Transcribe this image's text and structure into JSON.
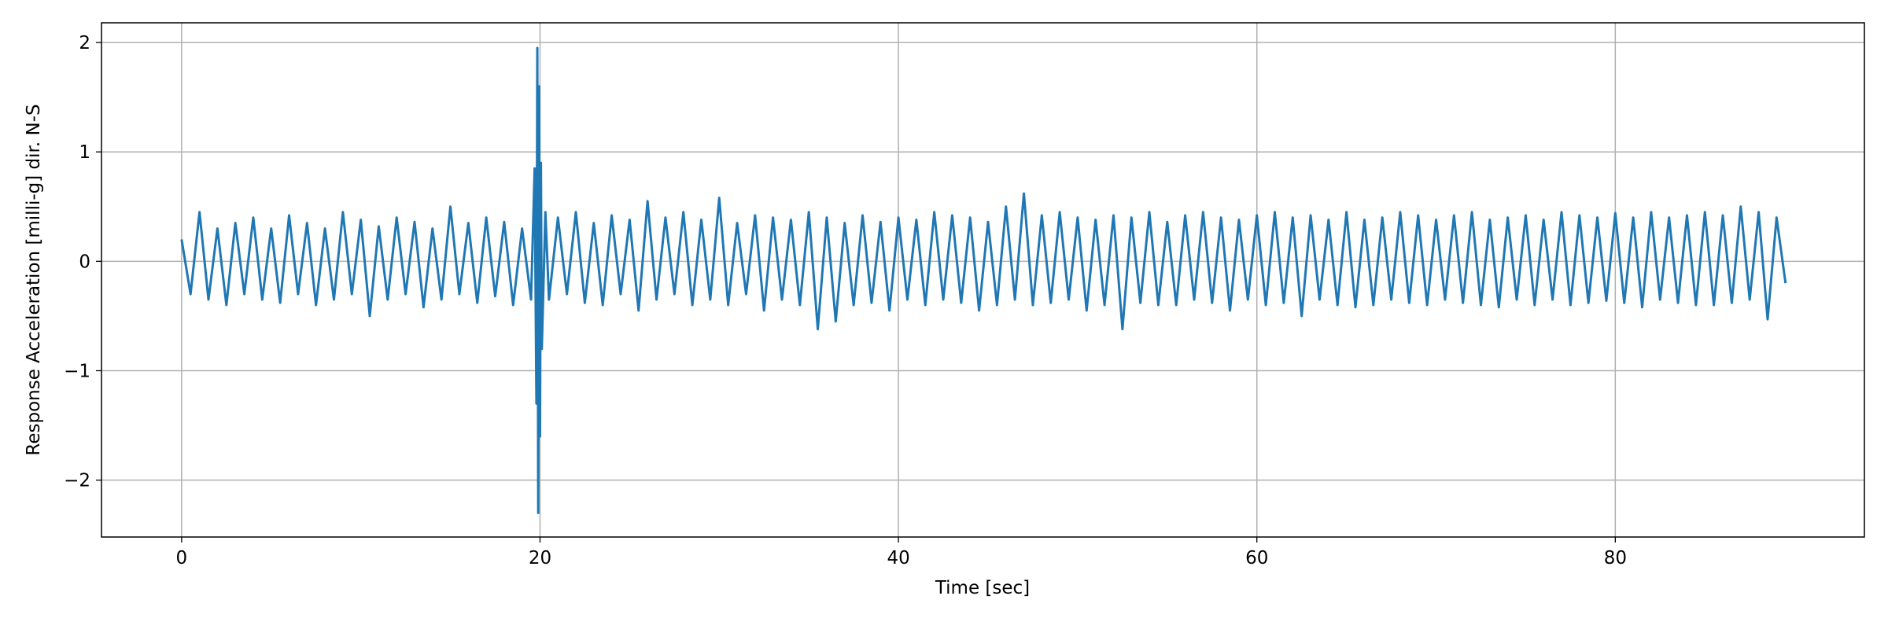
{
  "chart_data": {
    "type": "line",
    "xlabel": "Time [sec]",
    "ylabel": "Response Acceleration [milli-g] dir. N-S",
    "color": "#1f77b4",
    "grid": true,
    "xlim": [
      -4.47,
      93.9
    ],
    "ylim": [
      -2.52,
      2.18
    ],
    "xticks": [
      0,
      20,
      40,
      60,
      80
    ],
    "yticks": [
      {
        "value": -2,
        "label": "−2"
      },
      {
        "value": -1,
        "label": "−1"
      },
      0,
      1,
      2
    ],
    "x": [
      0,
      0.5,
      1,
      1.5,
      2,
      2.5,
      3,
      3.5,
      4,
      4.5,
      5,
      5.5,
      6,
      6.5,
      7,
      7.5,
      8,
      8.5,
      9,
      9.5,
      10,
      10.5,
      11,
      11.5,
      12,
      12.5,
      13,
      13.5,
      14,
      14.5,
      15,
      15.5,
      16,
      16.5,
      17,
      17.5,
      18,
      18.5,
      19,
      19.5,
      19.7,
      19.8,
      19.85,
      19.9,
      19.95,
      20.0,
      20.05,
      20.1,
      20.3,
      20.5,
      21,
      21.5,
      22,
      22.5,
      23,
      23.5,
      24,
      24.5,
      25,
      25.5,
      26,
      26.5,
      27,
      27.5,
      28,
      28.5,
      29,
      29.5,
      30,
      30.5,
      31,
      31.5,
      32,
      32.5,
      33,
      33.5,
      34,
      34.5,
      35,
      35.5,
      36,
      36.5,
      37,
      37.5,
      38,
      38.5,
      39,
      39.5,
      40,
      40.5,
      41,
      41.5,
      42,
      42.5,
      43,
      43.5,
      44,
      44.5,
      45,
      45.5,
      46,
      46.5,
      47,
      47.5,
      48,
      48.5,
      49,
      49.5,
      50,
      50.5,
      51,
      51.5,
      52,
      52.5,
      53,
      53.5,
      54,
      54.5,
      55,
      55.5,
      56,
      56.5,
      57,
      57.5,
      58,
      58.5,
      59,
      59.5,
      60,
      60.5,
      61,
      61.5,
      62,
      62.5,
      63,
      63.5,
      64,
      64.5,
      65,
      65.5,
      66,
      66.5,
      67,
      67.5,
      68,
      68.5,
      69,
      69.5,
      70,
      70.5,
      71,
      71.5,
      72,
      72.5,
      73,
      73.5,
      74,
      74.5,
      75,
      75.5,
      76,
      76.5,
      77,
      77.5,
      78,
      78.5,
      79,
      79.5,
      80,
      80.5,
      81,
      81.5,
      82,
      82.5,
      83,
      83.5,
      84,
      84.5,
      85,
      85.5,
      86,
      86.5,
      87,
      87.5,
      88,
      88.5,
      89,
      89.5
    ],
    "values": [
      0.2,
      -0.3,
      0.45,
      -0.35,
      0.3,
      -0.4,
      0.35,
      -0.3,
      0.4,
      -0.35,
      0.3,
      -0.38,
      0.42,
      -0.3,
      0.35,
      -0.4,
      0.3,
      -0.35,
      0.45,
      -0.3,
      0.38,
      -0.5,
      0.32,
      -0.35,
      0.4,
      -0.3,
      0.36,
      -0.42,
      0.3,
      -0.35,
      0.5,
      -0.3,
      0.35,
      -0.38,
      0.4,
      -0.32,
      0.36,
      -0.4,
      0.3,
      -0.35,
      0.85,
      -1.3,
      1.95,
      -2.3,
      1.6,
      -1.6,
      0.9,
      -0.8,
      0.45,
      -0.35,
      0.4,
      -0.3,
      0.45,
      -0.38,
      0.35,
      -0.4,
      0.42,
      -0.3,
      0.38,
      -0.45,
      0.55,
      -0.35,
      0.4,
      -0.3,
      0.45,
      -0.4,
      0.38,
      -0.35,
      0.58,
      -0.4,
      0.35,
      -0.3,
      0.42,
      -0.45,
      0.4,
      -0.35,
      0.38,
      -0.4,
      0.45,
      -0.62,
      0.4,
      -0.55,
      0.35,
      -0.4,
      0.42,
      -0.38,
      0.36,
      -0.45,
      0.4,
      -0.35,
      0.38,
      -0.4,
      0.45,
      -0.35,
      0.42,
      -0.38,
      0.4,
      -0.45,
      0.36,
      -0.4,
      0.5,
      -0.35,
      0.62,
      -0.4,
      0.42,
      -0.38,
      0.45,
      -0.35,
      0.4,
      -0.45,
      0.38,
      -0.4,
      0.42,
      -0.62,
      0.4,
      -0.38,
      0.45,
      -0.4,
      0.36,
      -0.4,
      0.42,
      -0.35,
      0.45,
      -0.38,
      0.4,
      -0.45,
      0.38,
      -0.35,
      0.42,
      -0.4,
      0.45,
      -0.38,
      0.4,
      -0.5,
      0.42,
      -0.35,
      0.38,
      -0.4,
      0.45,
      -0.42,
      0.38,
      -0.4,
      0.4,
      -0.35,
      0.45,
      -0.38,
      0.42,
      -0.4,
      0.38,
      -0.35,
      0.42,
      -0.38,
      0.45,
      -0.4,
      0.38,
      -0.42,
      0.4,
      -0.35,
      0.42,
      -0.4,
      0.38,
      -0.35,
      0.45,
      -0.4,
      0.42,
      -0.38,
      0.4,
      -0.36,
      0.44,
      -0.38,
      0.4,
      -0.42,
      0.45,
      -0.35,
      0.4,
      -0.38,
      0.42,
      -0.4,
      0.45,
      -0.4,
      0.42,
      -0.38,
      0.5,
      -0.35,
      0.45,
      -0.53,
      0.4,
      -0.2
    ]
  }
}
